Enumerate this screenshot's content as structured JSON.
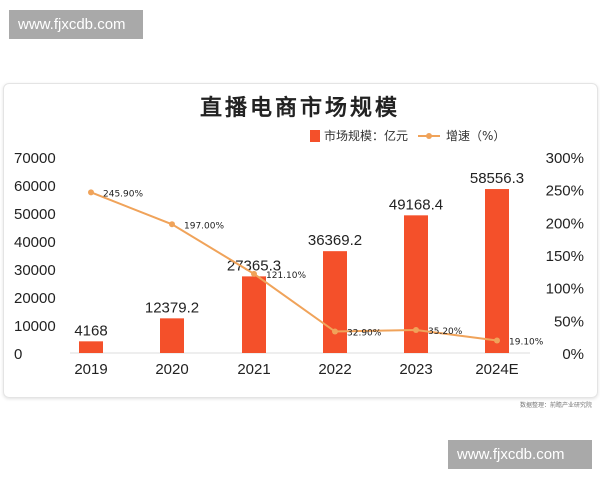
{
  "watermarks": [
    "www.fjxcdb.com",
    "www.fjxcdb.com"
  ],
  "source": "数据整理：前瞻产业研究院",
  "chart_data": {
    "type": "bar+line",
    "title": "直播电商市场规模",
    "categories": [
      "2019",
      "2020",
      "2021",
      "2022",
      "2023",
      "2024E"
    ],
    "series": [
      {
        "name": "市场规模：亿元",
        "type": "bar",
        "axis": "left",
        "color": "#f4502a",
        "values": [
          4168,
          12379.2,
          27365.3,
          36369.2,
          49168.4,
          58556.3
        ],
        "labels": [
          "4168",
          "12379.2",
          "27365.3",
          "36369.2",
          "49168.4",
          "58556.3"
        ]
      },
      {
        "name": "增速（%）",
        "type": "line",
        "axis": "right",
        "color": "#f0a35a",
        "values": [
          245.9,
          197.0,
          121.1,
          32.9,
          35.2,
          19.1
        ],
        "labels": [
          "245.90%",
          "197.00%",
          "121.10%",
          "32.90%",
          "35.20%",
          "19.10%"
        ]
      }
    ],
    "y_left": {
      "range": [
        0,
        70000
      ],
      "ticks": [
        "0",
        "10000",
        "20000",
        "30000",
        "40000",
        "50000",
        "60000",
        "70000"
      ]
    },
    "y_right": {
      "range": [
        0,
        300
      ],
      "ticks": [
        "0%",
        "50%",
        "100%",
        "150%",
        "200%",
        "250%",
        "300%"
      ]
    },
    "legend": "top-right",
    "grid": false
  }
}
